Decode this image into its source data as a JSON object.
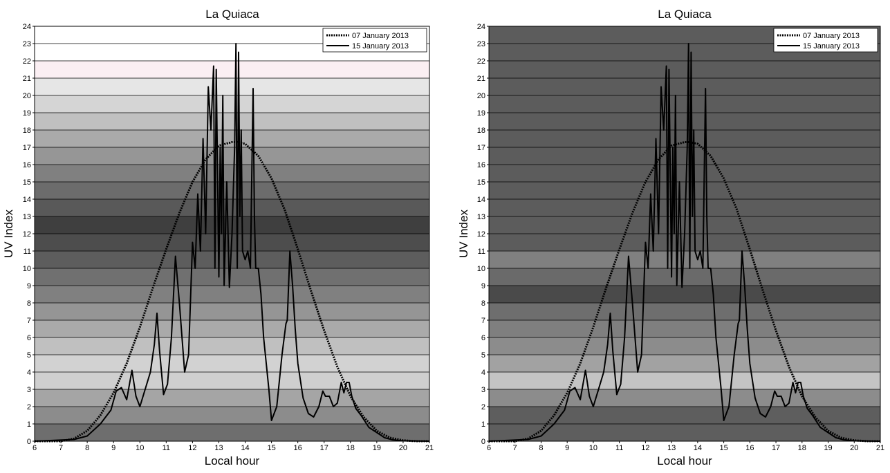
{
  "chart_data": [
    {
      "type": "line",
      "title": "La Quiaca",
      "xlabel": "Local hour",
      "ylabel": "UV Index",
      "xlim": [
        6,
        21
      ],
      "ylim": [
        0,
        24
      ],
      "x_ticks": [
        "6",
        "7",
        "8",
        "9",
        "10",
        "11",
        "12",
        "13",
        "14",
        "15",
        "16",
        "17",
        "18",
        "19",
        "20",
        "21"
      ],
      "y_ticks": [
        "0",
        "1",
        "2",
        "3",
        "4",
        "5",
        "6",
        "7",
        "8",
        "9",
        "10",
        "11",
        "12",
        "13",
        "14",
        "15",
        "16",
        "17",
        "18",
        "19",
        "20",
        "21",
        "22",
        "23",
        "24"
      ],
      "grid": true,
      "legend": "top-right",
      "bands": [
        {
          "from": 0,
          "to": 1,
          "color": "#6e6e6e"
        },
        {
          "from": 1,
          "to": 2,
          "color": "#8c8c8c"
        },
        {
          "from": 2,
          "to": 3,
          "color": "#a5a5a5"
        },
        {
          "from": 3,
          "to": 4,
          "color": "#cfcfcf"
        },
        {
          "from": 4,
          "to": 5,
          "color": "#d2d2d2"
        },
        {
          "from": 5,
          "to": 6,
          "color": "#c0c0c0"
        },
        {
          "from": 6,
          "to": 7,
          "color": "#aaaaaa"
        },
        {
          "from": 7,
          "to": 8,
          "color": "#959595"
        },
        {
          "from": 8,
          "to": 9,
          "color": "#808080"
        },
        {
          "from": 9,
          "to": 10,
          "color": "#707070"
        },
        {
          "from": 10,
          "to": 11,
          "color": "#5d5d5d"
        },
        {
          "from": 11,
          "to": 12,
          "color": "#4d4d4d"
        },
        {
          "from": 12,
          "to": 13,
          "color": "#3f3f3f"
        },
        {
          "from": 13,
          "to": 14,
          "color": "#595959"
        },
        {
          "from": 14,
          "to": 15,
          "color": "#6c6c6c"
        },
        {
          "from": 15,
          "to": 16,
          "color": "#808080"
        },
        {
          "from": 16,
          "to": 17,
          "color": "#969696"
        },
        {
          "from": 17,
          "to": 18,
          "color": "#aaaaaa"
        },
        {
          "from": 18,
          "to": 19,
          "color": "#c0c0c0"
        },
        {
          "from": 19,
          "to": 20,
          "color": "#d5d5d5"
        },
        {
          "from": 20,
          "to": 21,
          "color": "#e6e6e6"
        },
        {
          "from": 21,
          "to": 22,
          "color": "#fbeff3"
        },
        {
          "from": 22,
          "to": 23,
          "color": "#ffffff"
        },
        {
          "from": 23,
          "to": 24,
          "color": "#ffffff"
        }
      ],
      "series": [
        {
          "name": "07 January 2013",
          "style": "dotted",
          "x": [
            6,
            7,
            7.5,
            8,
            8.5,
            9,
            9.5,
            10,
            10.5,
            11,
            11.5,
            12,
            12.5,
            13,
            13.5,
            13.7,
            14,
            14.5,
            15,
            15.5,
            16,
            16.5,
            17,
            17.5,
            18,
            18.5,
            19,
            19.5,
            20,
            20.5,
            21
          ],
          "y": [
            0,
            0,
            0.15,
            0.6,
            1.5,
            2.8,
            4.5,
            6.6,
            8.9,
            11.1,
            13.2,
            15,
            16.3,
            17.1,
            17.3,
            17.3,
            17.2,
            16.5,
            15.2,
            13.4,
            11.1,
            8.7,
            6.4,
            4.3,
            2.6,
            1.4,
            0.6,
            0.2,
            0.05,
            0,
            0
          ]
        },
        {
          "name": "15 January 2013",
          "style": "solid",
          "x": [
            6,
            7.5,
            8,
            8.5,
            8.9,
            9.1,
            9.3,
            9.5,
            9.7,
            9.85,
            10,
            10.2,
            10.4,
            10.55,
            10.65,
            10.75,
            10.9,
            11.05,
            11.2,
            11.35,
            11.5,
            11.7,
            11.85,
            12,
            12.1,
            12.2,
            12.3,
            12.4,
            12.5,
            12.6,
            12.7,
            12.8,
            12.85,
            12.9,
            13,
            13.05,
            13.1,
            13.15,
            13.2,
            13.3,
            13.4,
            13.5,
            13.6,
            13.65,
            13.7,
            13.75,
            13.8,
            13.85,
            13.9,
            14,
            14.1,
            14.2,
            14.3,
            14.35,
            14.4,
            14.5,
            14.6,
            14.7,
            14.9,
            15,
            15.2,
            15.4,
            15.55,
            15.6,
            15.7,
            15.8,
            15.9,
            16,
            16.2,
            16.4,
            16.6,
            16.8,
            16.95,
            17.05,
            17.2,
            17.35,
            17.5,
            17.65,
            17.75,
            17.85,
            17.95,
            18.05,
            18.2,
            18.4,
            18.7,
            19,
            19.3,
            19.6,
            20,
            21
          ],
          "y": [
            0,
            0.1,
            0.3,
            1,
            1.8,
            2.9,
            3.1,
            2.4,
            4.1,
            2.6,
            2,
            3,
            4,
            5.6,
            7.4,
            5.2,
            2.7,
            3.3,
            6,
            10.7,
            8,
            4,
            5,
            11.5,
            10,
            14.3,
            11,
            17.5,
            12,
            20.5,
            18,
            21.7,
            10,
            21.5,
            9.5,
            17,
            12,
            20,
            9,
            15,
            8.9,
            12,
            17,
            23,
            10,
            22.5,
            13,
            18,
            11,
            10.5,
            11,
            10,
            20.4,
            13,
            10,
            10,
            8.5,
            6,
            3,
            1.2,
            2,
            5,
            6.8,
            7,
            11,
            9,
            6.5,
            4.5,
            2.5,
            1.6,
            1.4,
            2,
            2.9,
            2.6,
            2.6,
            2,
            2.2,
            3.4,
            2.8,
            3.4,
            3.4,
            2.6,
            1.9,
            1.5,
            0.8,
            0.5,
            0.2,
            0.08,
            0.02,
            0
          ]
        }
      ]
    },
    {
      "type": "line",
      "title": "La Quiaca",
      "xlabel": "Local hour",
      "ylabel": "UV Index",
      "xlim": [
        6,
        21
      ],
      "ylim": [
        0,
        24
      ],
      "x_ticks": [
        "6",
        "7",
        "8",
        "9",
        "10",
        "11",
        "12",
        "13",
        "14",
        "15",
        "16",
        "17",
        "18",
        "19",
        "20",
        "21"
      ],
      "y_ticks": [
        "0",
        "1",
        "2",
        "3",
        "4",
        "5",
        "6",
        "7",
        "8",
        "9",
        "10",
        "11",
        "12",
        "13",
        "14",
        "15",
        "16",
        "17",
        "18",
        "19",
        "20",
        "21",
        "22",
        "23",
        "24"
      ],
      "grid": true,
      "legend": "top-right",
      "bands": [
        {
          "from": 0,
          "to": 2,
          "color": "#5e5e5e"
        },
        {
          "from": 2,
          "to": 3,
          "color": "#8c8c8c"
        },
        {
          "from": 3,
          "to": 4,
          "color": "#c4c4c4"
        },
        {
          "from": 4,
          "to": 5,
          "color": "#a2a2a2"
        },
        {
          "from": 5,
          "to": 6,
          "color": "#8c8c8c"
        },
        {
          "from": 6,
          "to": 7,
          "color": "#7f7f7f"
        },
        {
          "from": 7,
          "to": 8,
          "color": "#6e6e6e"
        },
        {
          "from": 8,
          "to": 9,
          "color": "#4a4a4a"
        },
        {
          "from": 9,
          "to": 10,
          "color": "#6a6a6a"
        },
        {
          "from": 10,
          "to": 11,
          "color": "#808080"
        },
        {
          "from": 11,
          "to": 24,
          "color": "#5c5c5c"
        }
      ],
      "series": [
        {
          "name": "07 January 2013",
          "style": "dotted",
          "x": [
            6,
            7,
            7.5,
            8,
            8.5,
            9,
            9.5,
            10,
            10.5,
            11,
            11.5,
            12,
            12.5,
            13,
            13.5,
            13.7,
            14,
            14.5,
            15,
            15.5,
            16,
            16.5,
            17,
            17.5,
            18,
            18.5,
            19,
            19.5,
            20,
            20.5,
            21
          ],
          "y": [
            0,
            0,
            0.15,
            0.6,
            1.5,
            2.8,
            4.5,
            6.6,
            8.9,
            11.1,
            13.2,
            15,
            16.3,
            17.1,
            17.3,
            17.3,
            17.2,
            16.5,
            15.2,
            13.4,
            11.1,
            8.7,
            6.4,
            4.3,
            2.6,
            1.4,
            0.6,
            0.2,
            0.05,
            0,
            0
          ]
        },
        {
          "name": "15 January 2013",
          "style": "solid",
          "x": [
            6,
            7.5,
            8,
            8.5,
            8.9,
            9.1,
            9.3,
            9.5,
            9.7,
            9.85,
            10,
            10.2,
            10.4,
            10.55,
            10.65,
            10.75,
            10.9,
            11.05,
            11.2,
            11.35,
            11.5,
            11.7,
            11.85,
            12,
            12.1,
            12.2,
            12.3,
            12.4,
            12.5,
            12.6,
            12.7,
            12.8,
            12.85,
            12.9,
            13,
            13.05,
            13.1,
            13.15,
            13.2,
            13.3,
            13.4,
            13.5,
            13.6,
            13.65,
            13.7,
            13.75,
            13.8,
            13.85,
            13.9,
            14,
            14.1,
            14.2,
            14.3,
            14.35,
            14.4,
            14.5,
            14.6,
            14.7,
            14.9,
            15,
            15.2,
            15.4,
            15.55,
            15.6,
            15.7,
            15.8,
            15.9,
            16,
            16.2,
            16.4,
            16.6,
            16.8,
            16.95,
            17.05,
            17.2,
            17.35,
            17.5,
            17.65,
            17.75,
            17.85,
            17.95,
            18.05,
            18.2,
            18.4,
            18.7,
            19,
            19.3,
            19.6,
            20,
            21
          ],
          "y": [
            0,
            0.1,
            0.3,
            1,
            1.8,
            2.9,
            3.1,
            2.4,
            4.1,
            2.6,
            2,
            3,
            4,
            5.6,
            7.4,
            5.2,
            2.7,
            3.3,
            6,
            10.7,
            8,
            4,
            5,
            11.5,
            10,
            14.3,
            11,
            17.5,
            12,
            20.5,
            18,
            21.7,
            10,
            21.5,
            9.5,
            17,
            12,
            20,
            9,
            15,
            8.9,
            12,
            17,
            23,
            10,
            22.5,
            13,
            18,
            11,
            10.5,
            11,
            10,
            20.4,
            13,
            10,
            10,
            8.5,
            6,
            3,
            1.2,
            2,
            5,
            6.8,
            7,
            11,
            9,
            6.5,
            4.5,
            2.5,
            1.6,
            1.4,
            2,
            2.9,
            2.6,
            2.6,
            2,
            2.2,
            3.4,
            2.8,
            3.4,
            3.4,
            2.6,
            1.9,
            1.5,
            0.8,
            0.5,
            0.2,
            0.08,
            0.02,
            0
          ]
        }
      ]
    }
  ]
}
